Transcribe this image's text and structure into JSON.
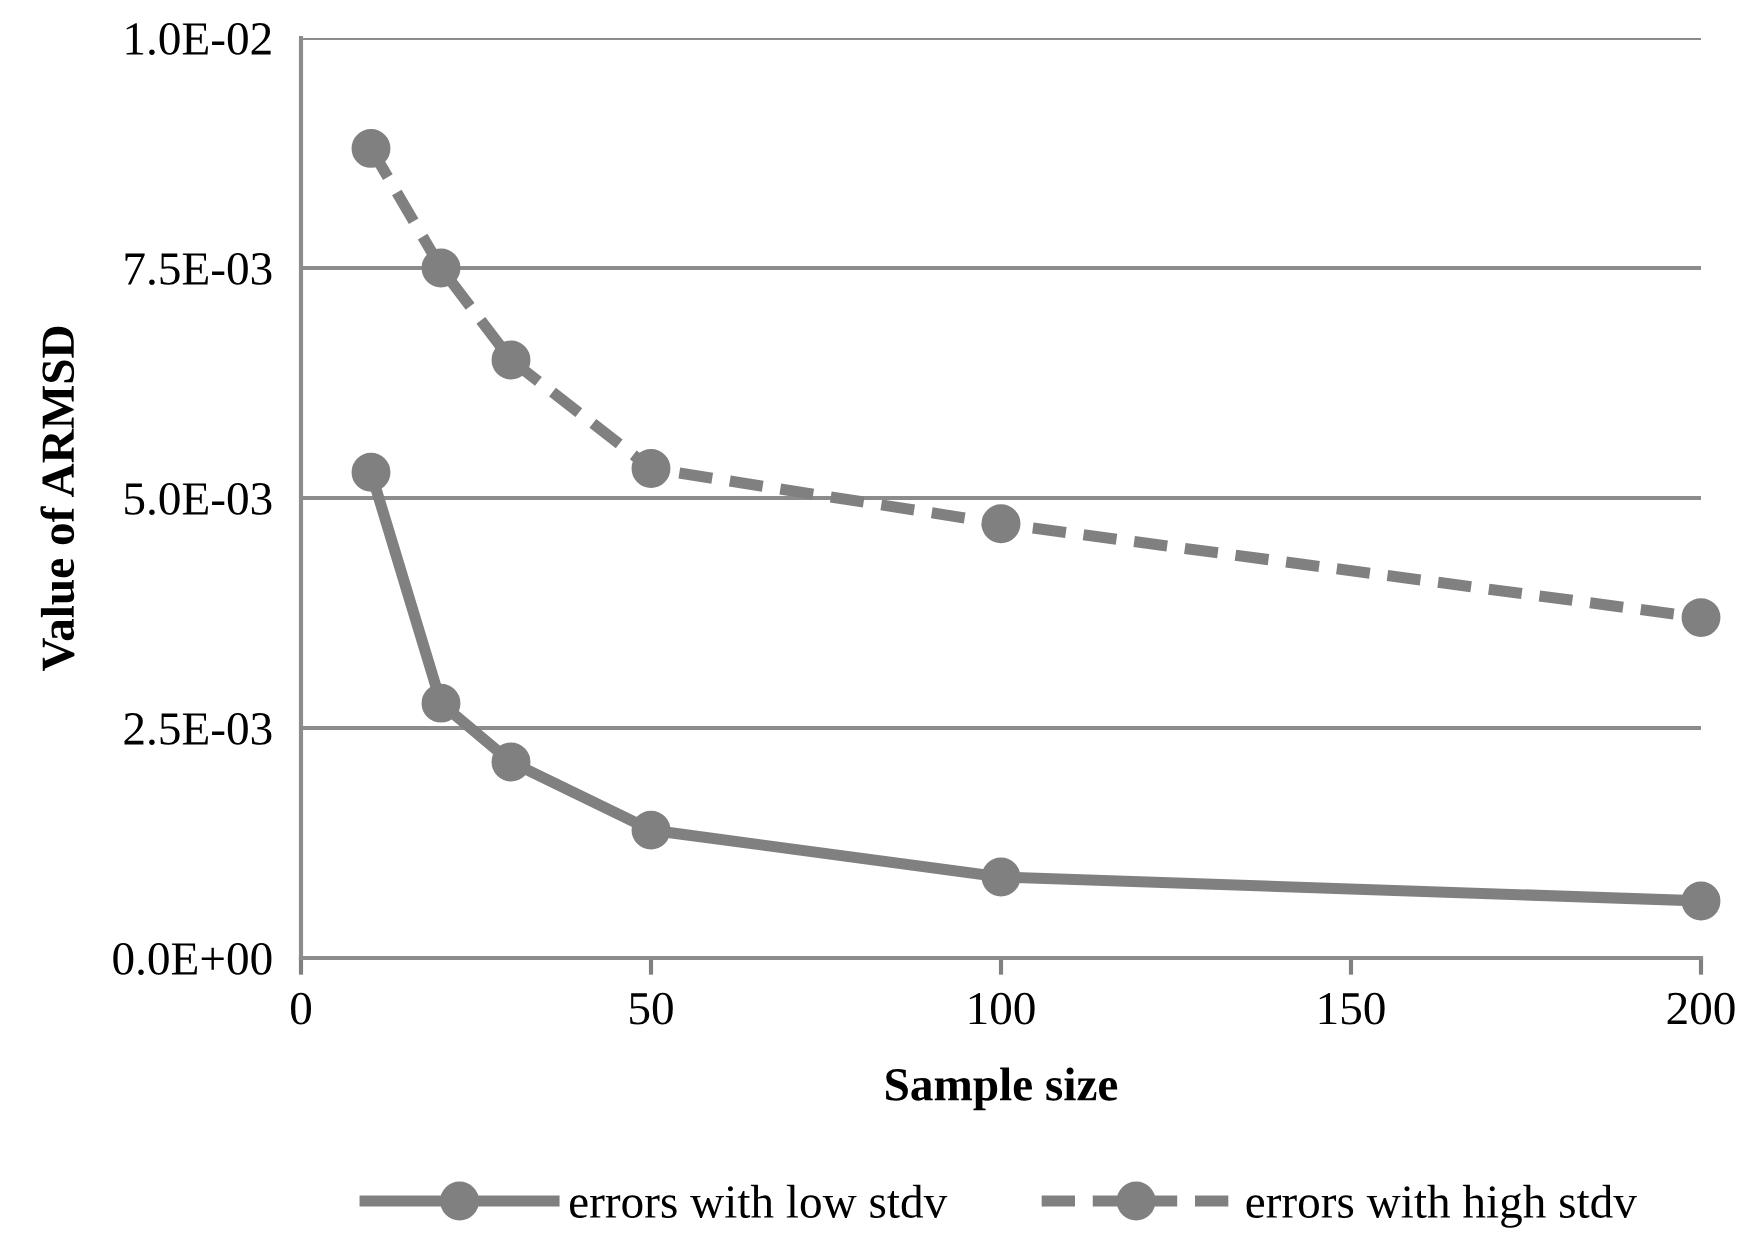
{
  "chart_data": {
    "type": "line",
    "xlabel": "Sample size",
    "ylabel": "Value of ARMSD",
    "x": [
      10,
      20,
      30,
      50,
      100,
      200
    ],
    "series": [
      {
        "name": "errors with low stdv",
        "color": "#808080",
        "line_style": "solid",
        "values": [
          0.00528,
          0.00277,
          0.00213,
          0.00139,
          0.00088,
          0.00062
        ]
      },
      {
        "name": "errors with high stdv",
        "color": "#808080",
        "line_style": "dashed",
        "values": [
          0.0088,
          0.0075,
          0.0065,
          0.00532,
          0.00472,
          0.0037
        ]
      }
    ],
    "xlim": [
      0,
      200
    ],
    "xticks": [
      0,
      50,
      100,
      150,
      200
    ],
    "ylim": [
      0,
      0.01
    ],
    "yticks": [
      {
        "value": 0,
        "label": "0.0E+00"
      },
      {
        "value": 0.0025,
        "label": "2.5E-03"
      },
      {
        "value": 0.005,
        "label": "5.0E-03"
      },
      {
        "value": 0.0075,
        "label": "7.5E-03"
      },
      {
        "value": 0.01,
        "label": "1.0E-02"
      }
    ],
    "grid": "y",
    "legend": "bottom",
    "marker": "circle"
  }
}
